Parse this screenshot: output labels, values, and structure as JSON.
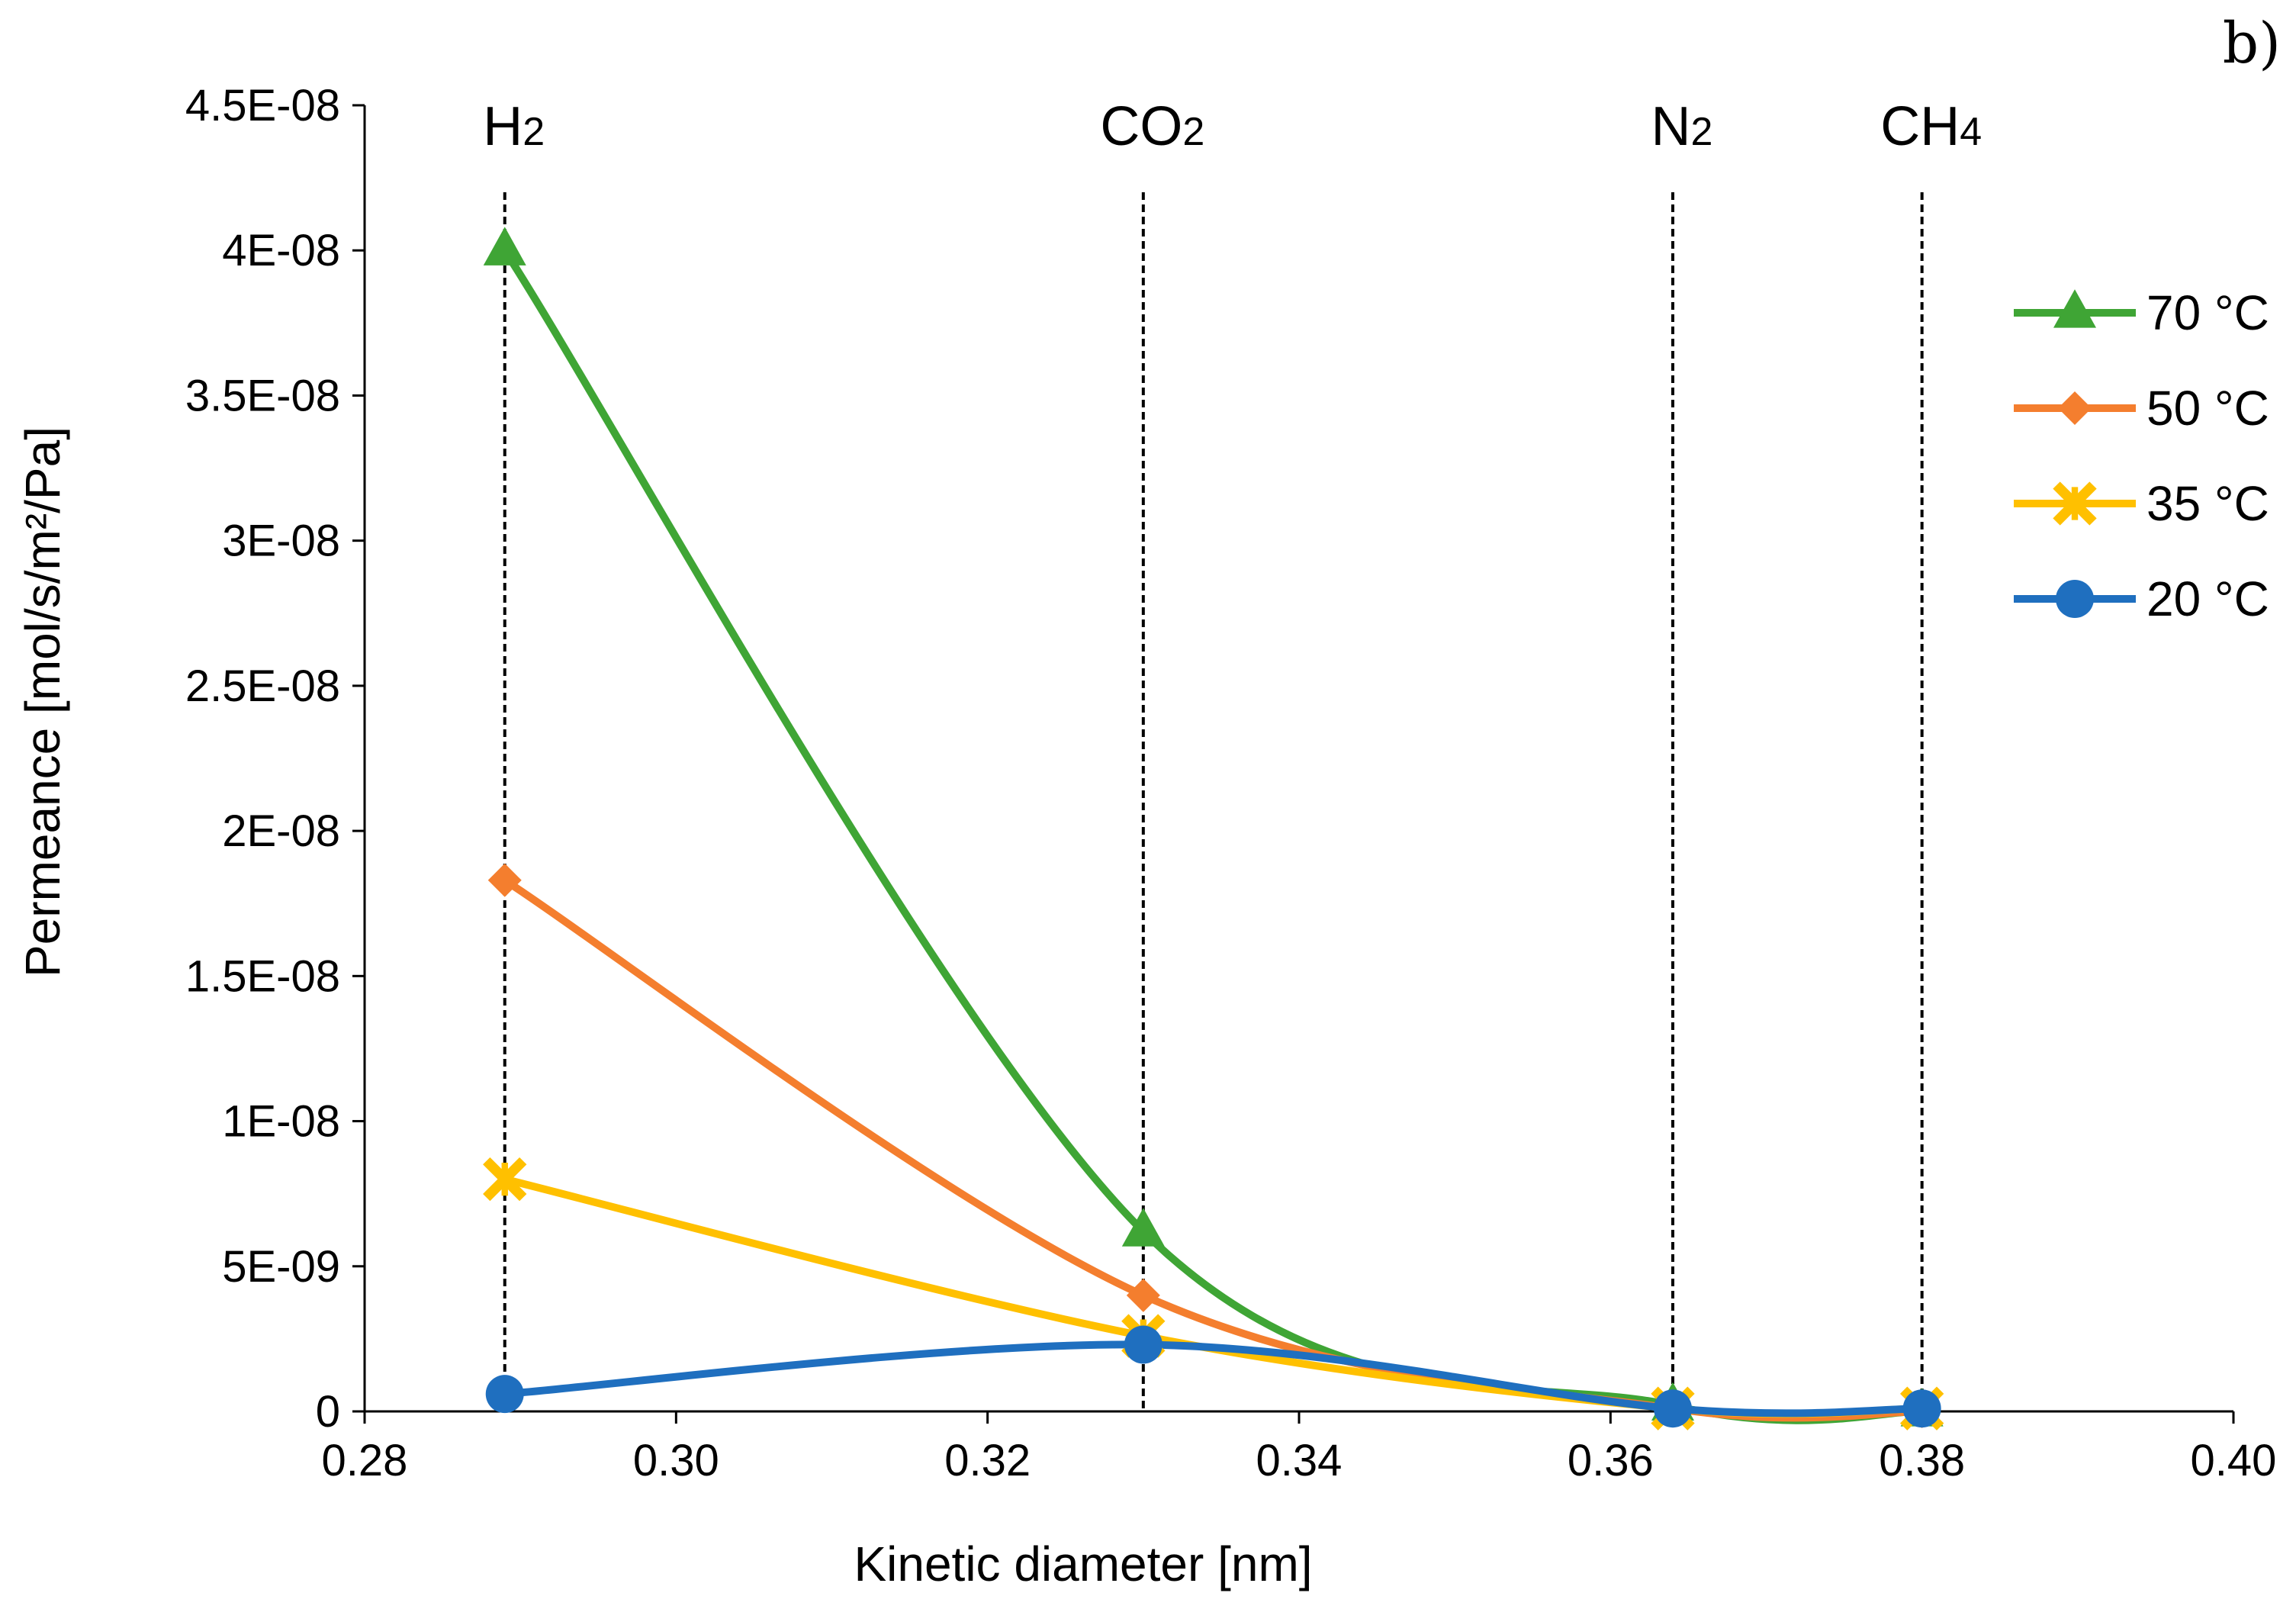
{
  "chart_data": {
    "type": "line",
    "panel_label": "b)",
    "title": "",
    "xlabel": "Kinetic diameter [nm]",
    "ylabel": "Permeance [mol/s/m²/Pa]",
    "xlim": [
      0.28,
      0.4
    ],
    "ylim": [
      0,
      4.5e-08
    ],
    "x_ticks": [
      0.28,
      0.3,
      0.32,
      0.34,
      0.36,
      0.38,
      0.4
    ],
    "x_tick_labels": [
      "0.28",
      "0.30",
      "0.32",
      "0.34",
      "0.36",
      "0.38",
      "0.40"
    ],
    "y_ticks": [
      0,
      5e-09,
      1e-08,
      1.5e-08,
      2e-08,
      2.5e-08,
      3e-08,
      3.5e-08,
      4e-08,
      4.5e-08
    ],
    "y_tick_labels": [
      "0",
      "5E-09",
      "1E-08",
      "1.5E-08",
      "2E-08",
      "2.5E-08",
      "3E-08",
      "3.5E-08",
      "4E-08",
      "4.5E-08"
    ],
    "grid": false,
    "legend_position": "right",
    "gases": [
      {
        "name": "H",
        "subscript": "2",
        "x": 0.289
      },
      {
        "name": "CO",
        "subscript": "2",
        "x": 0.33
      },
      {
        "name": "N",
        "subscript": "2",
        "x": 0.364
      },
      {
        "name": "CH",
        "subscript": "4",
        "x": 0.38
      }
    ],
    "x": [
      0.289,
      0.33,
      0.364,
      0.38
    ],
    "series": [
      {
        "name": "70 °C",
        "color": "#3fa535",
        "marker": "triangle",
        "values": [
          4e-08,
          6.2e-09,
          2e-10,
          0.0
        ]
      },
      {
        "name": "50 °C",
        "color": "#f47e2e",
        "marker": "diamond",
        "values": [
          1.83e-08,
          4e-09,
          1e-10,
          0.0
        ]
      },
      {
        "name": "35 °C",
        "color": "#ffc000",
        "marker": "x",
        "values": [
          8e-09,
          2.6e-09,
          1e-10,
          1e-10
        ]
      },
      {
        "name": "20 °C",
        "color": "#1f6fbf",
        "marker": "circle",
        "values": [
          6e-10,
          2.3e-09,
          1e-10,
          1e-10
        ]
      }
    ]
  }
}
